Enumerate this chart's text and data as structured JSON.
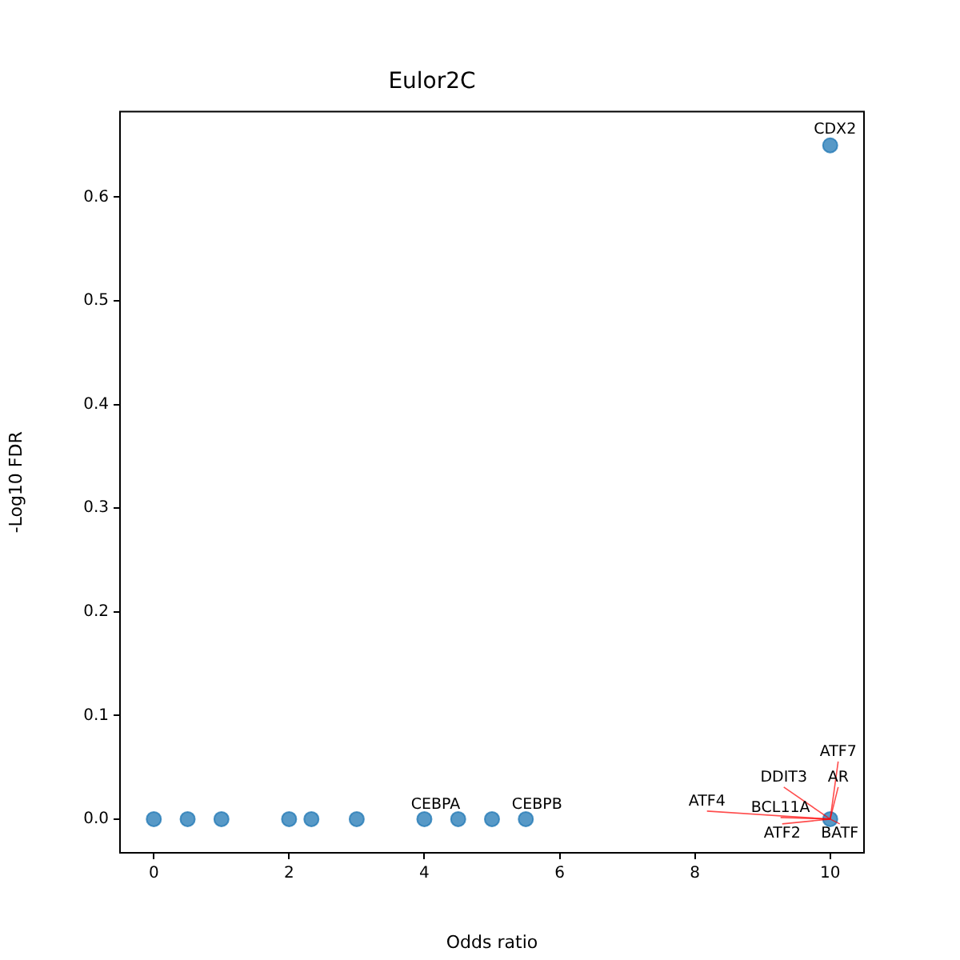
{
  "chart_data": {
    "type": "scatter",
    "title": "Eulor2C",
    "xlabel": "Odds ratio",
    "ylabel": "-Log10 FDR",
    "x": [
      0,
      0.5,
      1,
      2,
      2.33,
      3,
      4,
      4.5,
      5,
      5.5,
      10,
      10
    ],
    "values": [
      0,
      0,
      0,
      0,
      0,
      0,
      0,
      0,
      0,
      0,
      0,
      0.65
    ],
    "color": "#1f77b4",
    "marker": "circle",
    "grid": false,
    "legend": false,
    "xlim": [
      -0.5,
      10.5
    ],
    "xticks": [
      0,
      2,
      4,
      6,
      8,
      10
    ],
    "ylim": [
      -0.0325,
      0.6825
    ],
    "yticks": [
      {
        "value": 0,
        "label": "0.0"
      },
      {
        "value": 0.1,
        "label": "0.1"
      },
      {
        "value": 0.2,
        "label": "0.2"
      },
      {
        "value": 0.3,
        "label": "0.3"
      },
      {
        "value": 0.4,
        "label": "0.4"
      },
      {
        "value": 0.5,
        "label": "0.5"
      },
      {
        "value": 0.6,
        "label": "0.6"
      }
    ],
    "annotations": [
      {
        "text": "CEBPA",
        "x": 4,
        "y": 0
      },
      {
        "text": "CEBPB",
        "x": 5.5,
        "y": 0
      },
      {
        "text": "CDX2",
        "x": 10,
        "y": 0.65
      },
      {
        "text": "ATF7",
        "x": 10,
        "y": 0
      },
      {
        "text": "AR",
        "x": 10,
        "y": 0
      },
      {
        "text": "DDIT3",
        "x": 10,
        "y": 0
      },
      {
        "text": "ATF4",
        "x": 10,
        "y": 0
      },
      {
        "text": "BCL11A",
        "x": 10,
        "y": 0
      },
      {
        "text": "ATF2",
        "x": 10,
        "y": 0
      },
      {
        "text": "BATF",
        "x": 10,
        "y": 0
      }
    ]
  }
}
